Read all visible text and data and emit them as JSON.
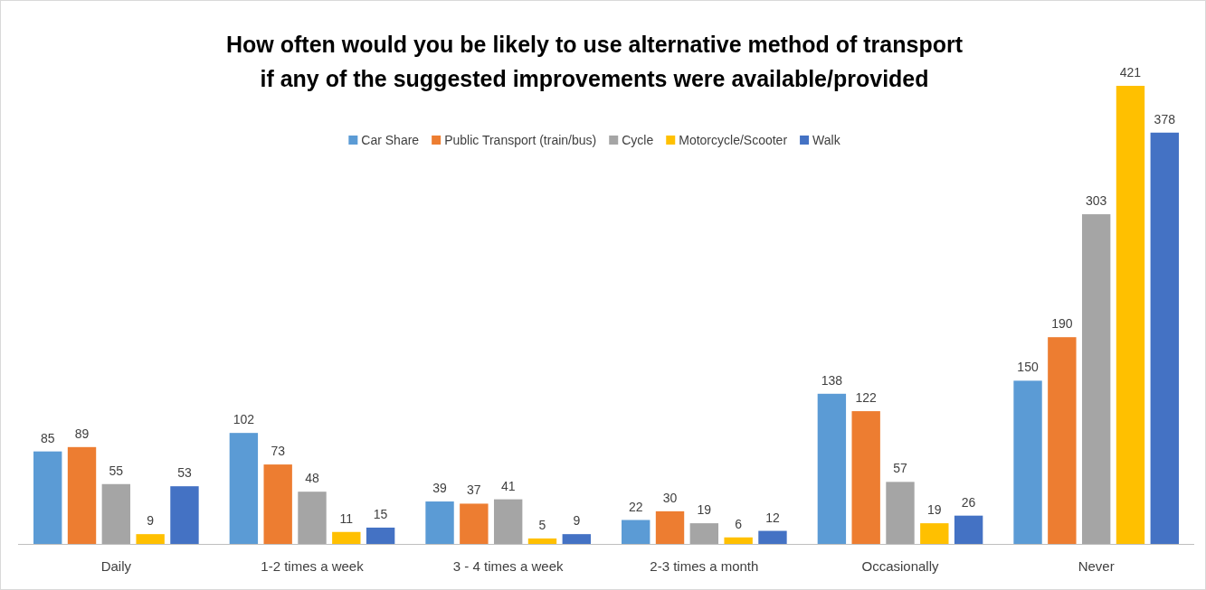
{
  "chart_data": {
    "type": "bar",
    "title": "How often would you be likely to use alternative method of transport if any of the suggested improvements were available/provided",
    "categories": [
      "Daily",
      "1-2 times a week",
      "3 - 4 times a week",
      "2-3 times a month",
      "Occasionally",
      "Never"
    ],
    "series": [
      {
        "name": "Car Share",
        "color": "#5b9bd5",
        "values": [
          85,
          102,
          39,
          22,
          138,
          150
        ]
      },
      {
        "name": "Public Transport (train/bus)",
        "color": "#ed7d31",
        "values": [
          89,
          73,
          37,
          30,
          122,
          190
        ]
      },
      {
        "name": "Cycle",
        "color": "#a5a5a5",
        "values": [
          55,
          48,
          41,
          19,
          57,
          303
        ]
      },
      {
        "name": "Motorcycle/Scooter",
        "color": "#ffc000",
        "values": [
          9,
          11,
          5,
          6,
          19,
          421
        ]
      },
      {
        "name": "Walk",
        "color": "#4472c4",
        "values": [
          53,
          15,
          9,
          12,
          26,
          378
        ]
      }
    ],
    "data_labels": true,
    "legend": "top"
  }
}
